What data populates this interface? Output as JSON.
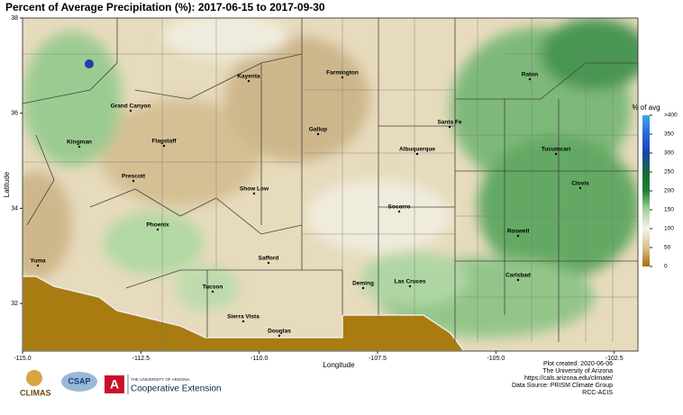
{
  "chart_data": {
    "type": "map",
    "title": "Percent of Average Precipitation (%): 2017-06-15 to 2017-09-30",
    "xlabel": "Longitude",
    "ylabel": "Latitude",
    "xlim": [
      -115,
      -102
    ],
    "ylim": [
      31,
      38
    ],
    "xticks": [
      {
        "value": -115,
        "label": "-115.0"
      },
      {
        "value": -112.5,
        "label": "-112.5"
      },
      {
        "value": -110,
        "label": "-110.0"
      },
      {
        "value": -107.5,
        "label": "-107.5"
      },
      {
        "value": -105,
        "label": "-105.0"
      },
      {
        "value": -102.5,
        "label": "-102.5"
      }
    ],
    "yticks": [
      32,
      34,
      36,
      38
    ],
    "colorbar": {
      "title": "% of avg",
      "lim": [
        0,
        400
      ],
      "ticks": [
        0,
        50,
        100,
        150,
        200,
        250,
        300,
        350,
        {
          "value": 400,
          "label": ">400"
        }
      ]
    },
    "cities": [
      "Kayenta",
      "Farmington",
      "Grand Canyon",
      "Raton",
      "Santa Fe",
      "Kingman",
      "Flagstaff",
      "Gallup",
      "Albuquerque",
      "Tucumcari",
      "Prescott",
      "Show Low",
      "Clovis",
      "Socorro",
      "Phoenix",
      "Roswell",
      "Safford",
      "Yuma",
      "Deming",
      "Las Cruces",
      "Carlsbad",
      "Tucson",
      "Sierra Vista",
      "Douglas"
    ]
  },
  "footer": {
    "logos": [
      "CLIMAS",
      "CSAP",
      "THE UNIVERSITY OF ARIZONA",
      "Cooperative Extension"
    ],
    "credits": [
      "Plot created: 2020-06-06",
      "The University of Arizona",
      "https://cals.arizona.edu/climate/",
      "Data Source: PRISM Climate Group",
      "RCC-ACIS"
    ]
  }
}
